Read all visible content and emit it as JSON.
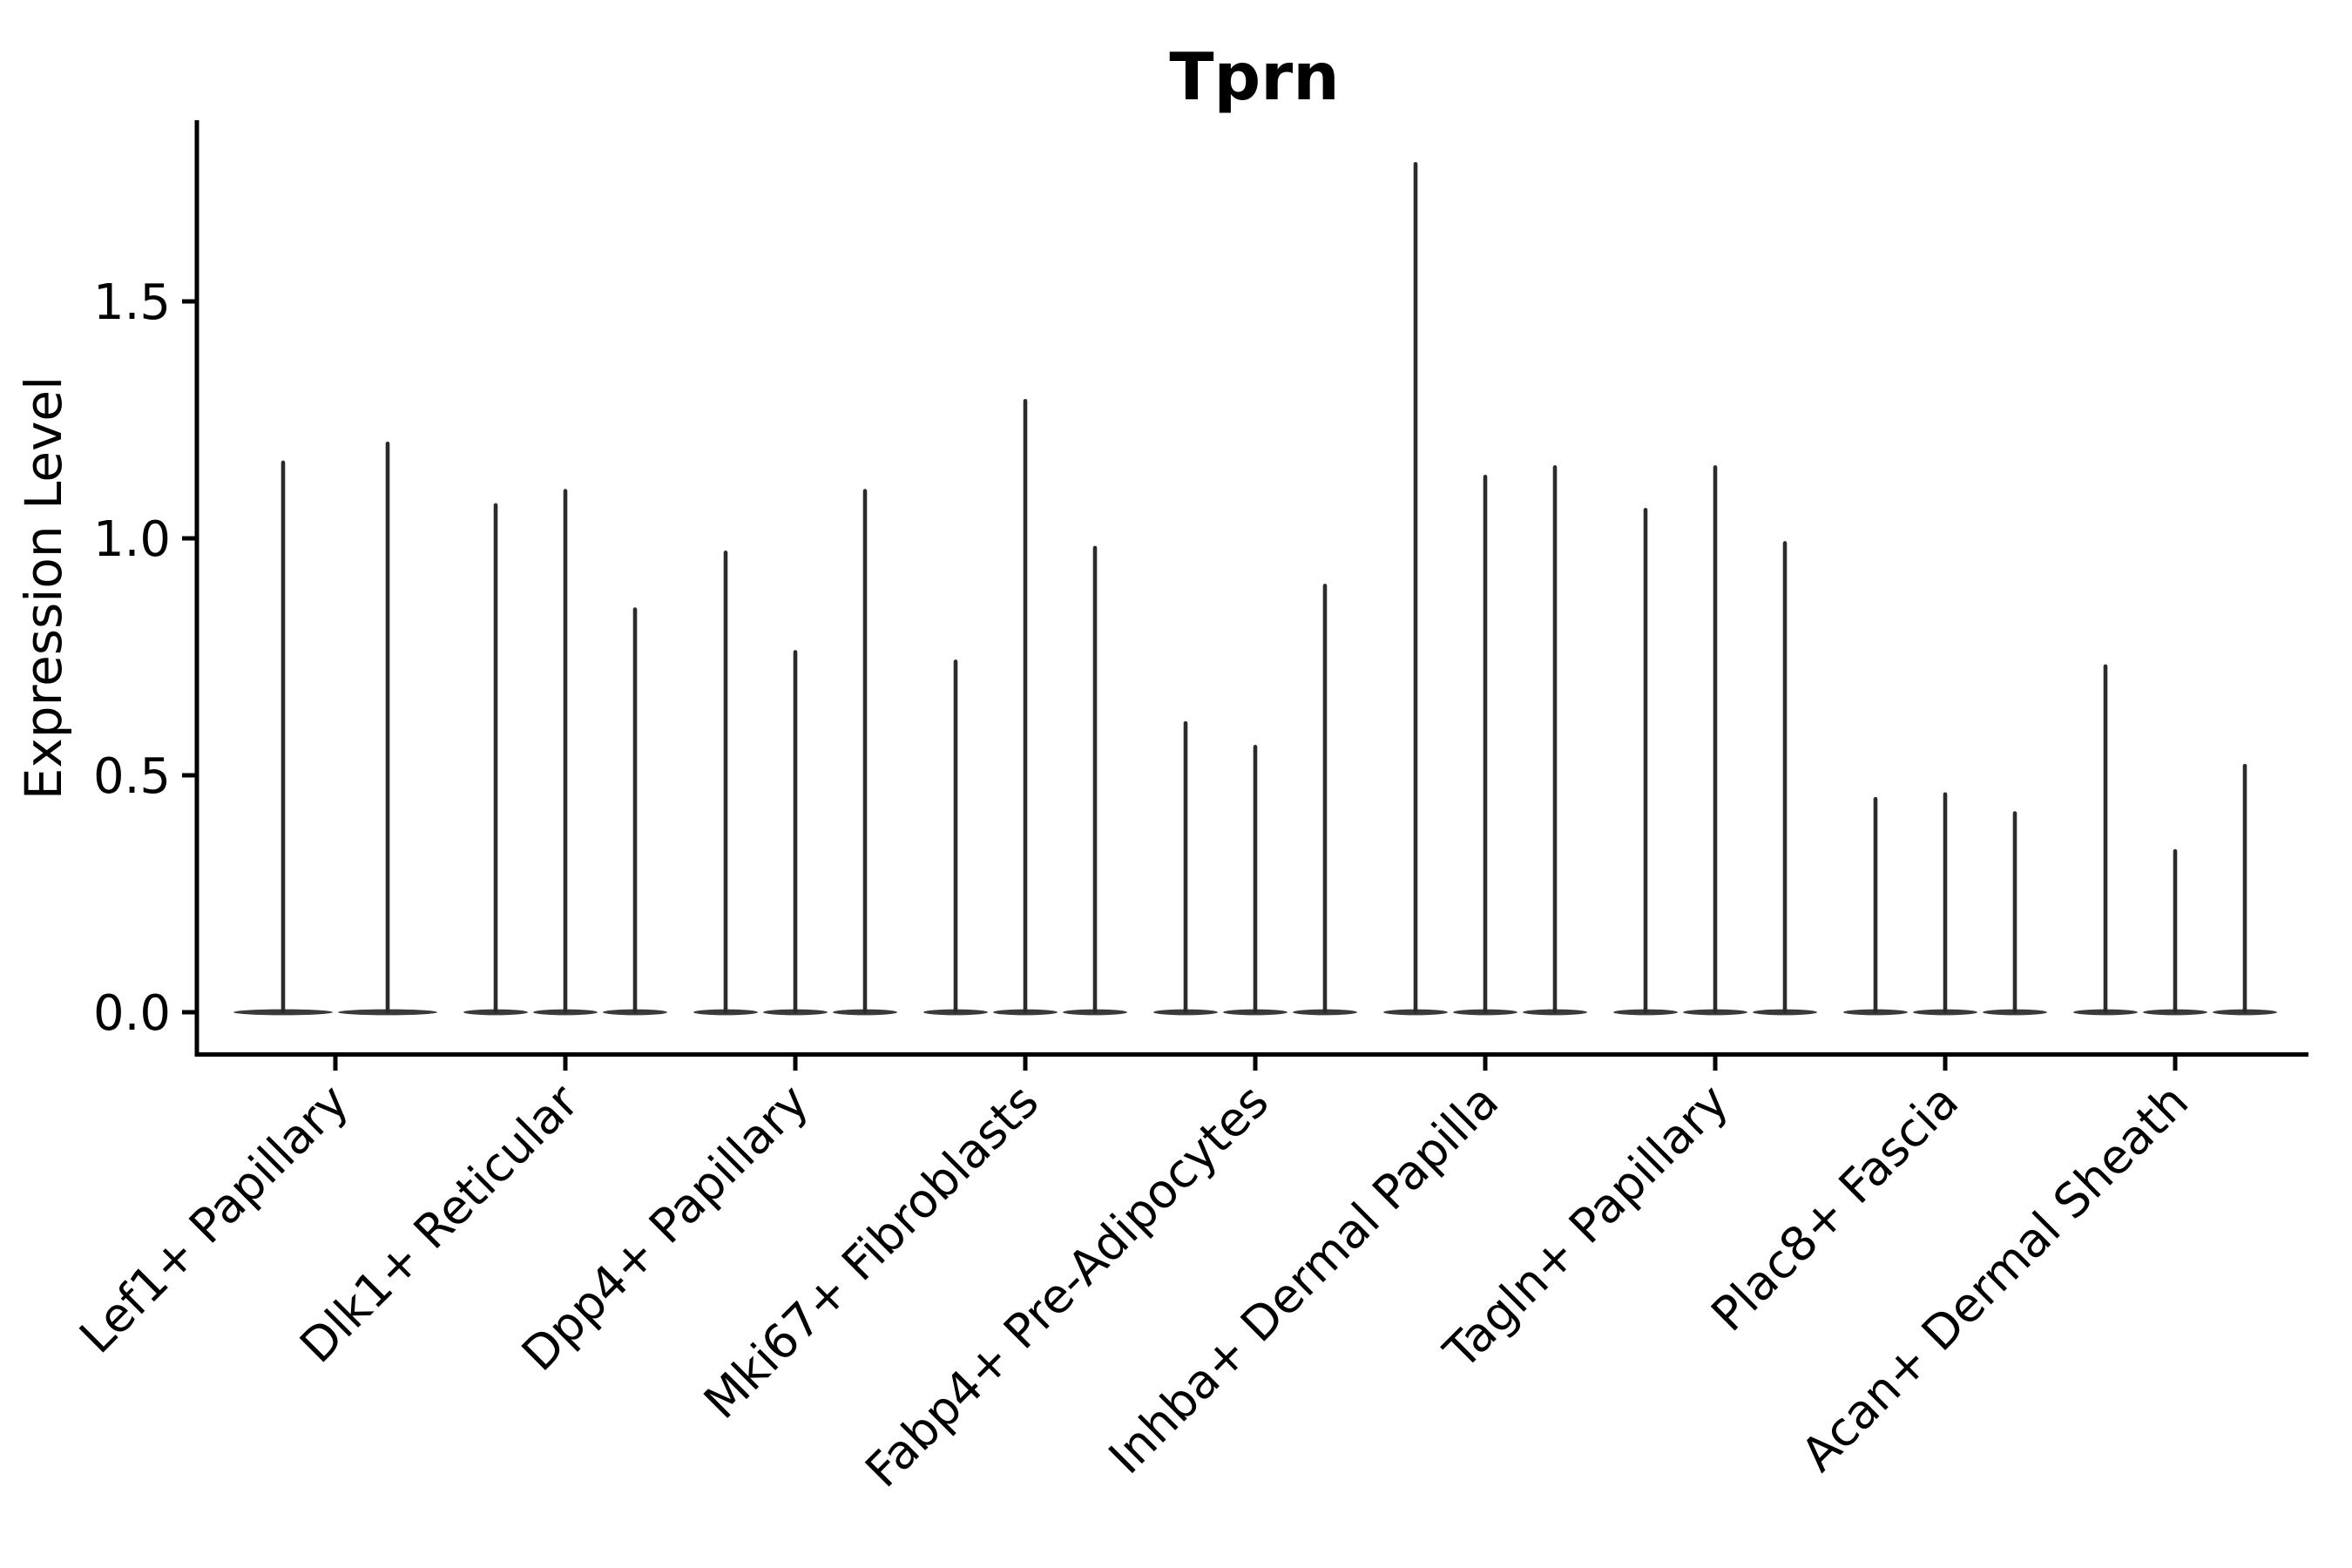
{
  "chart_data": {
    "type": "violin",
    "title": "Tprn",
    "ylabel": "Expression Level",
    "xlabel": "",
    "ytick_labels": [
      "0.0",
      "0.5",
      "1.0",
      "1.5"
    ],
    "yticks": [
      0.0,
      0.5,
      1.0,
      1.5
    ],
    "ylim": [
      0.0,
      1.88
    ],
    "grid": false,
    "legend": "none",
    "x_label_rotation": 45,
    "spines": [
      "left",
      "bottom"
    ],
    "description": "Stacked-violin style gene expression plot; each category shows flat violins at 0 with thin density spikes; spike_heights are the max expression level reached by each violin within the category.",
    "categories": [
      "Lef1+ Papillary",
      "Dlk1+ Reticular",
      "Dpp4+ Papillary",
      "Mki67+ Fibroblasts",
      "Fabp4+ Pre-Adipocytes",
      "Inhba+ Dermal Papilla",
      "Tagln+ Papillary",
      "Plac8+ Fascia",
      "Acan+ Dermal Sheath"
    ],
    "spike_heights": [
      [
        1.16,
        1.2
      ],
      [
        1.07,
        1.1,
        0.85
      ],
      [
        0.97,
        0.76,
        1.1
      ],
      [
        0.74,
        1.29,
        0.98
      ],
      [
        0.61,
        0.56,
        0.9
      ],
      [
        1.79,
        1.13,
        1.15
      ],
      [
        1.06,
        1.15,
        0.99
      ],
      [
        0.45,
        0.46,
        0.42
      ],
      [
        0.73,
        0.34,
        0.52
      ]
    ],
    "colors": {
      "violin": "#2b2b2b",
      "violin_base": "#3a3a3a",
      "axis": "#000000",
      "text": "#000000",
      "background": "#ffffff"
    }
  }
}
